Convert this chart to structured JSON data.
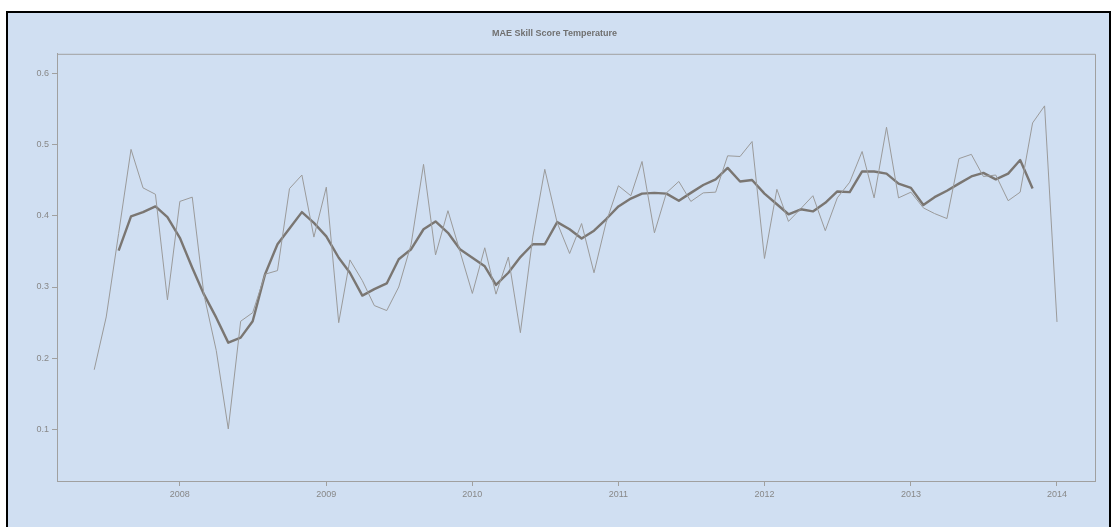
{
  "chart_data": {
    "type": "line",
    "title": "MAE Skill Score Temperature",
    "xlim": [
      "2007-02-28",
      "2014-04-06"
    ],
    "xticks": [
      "2008",
      "2009",
      "2010",
      "2011",
      "2012",
      "2013",
      "2014"
    ],
    "ylim": [
      0.028,
      0.627
    ],
    "yticks": [
      0.1,
      0.2,
      0.3,
      0.4,
      0.5,
      0.6
    ],
    "series": [
      {
        "color": "#9a9a9a",
        "x": [
          "2007-06",
          "2007-07",
          "2007-08",
          "2007-09",
          "2007-10",
          "2007-11",
          "2007-12",
          "2008-01",
          "2008-02",
          "2008-03",
          "2008-04",
          "2008-05",
          "2008-06",
          "2008-07",
          "2008-08",
          "2008-09",
          "2008-10",
          "2008-11",
          "2008-12",
          "2009-01",
          "2009-02",
          "2009-03",
          "2009-04",
          "2009-05",
          "2009-06",
          "2009-07",
          "2009-08",
          "2009-09",
          "2009-10",
          "2009-11",
          "2009-12",
          "2010-01",
          "2010-02",
          "2010-03",
          "2010-04",
          "2010-05",
          "2010-06",
          "2010-07",
          "2010-08",
          "2010-09",
          "2010-10",
          "2010-11",
          "2010-12",
          "2011-01",
          "2011-02",
          "2011-03",
          "2011-04",
          "2011-05",
          "2011-06",
          "2011-07",
          "2011-08",
          "2011-09",
          "2011-10",
          "2011-11",
          "2011-12",
          "2012-01",
          "2012-02",
          "2012-03",
          "2012-04",
          "2012-05",
          "2012-06",
          "2012-07",
          "2012-08",
          "2012-09",
          "2012-10",
          "2012-11",
          "2012-12",
          "2013-01",
          "2013-02",
          "2013-03",
          "2013-04",
          "2013-05",
          "2013-06",
          "2013-07",
          "2013-08",
          "2013-09",
          "2013-10",
          "2013-11",
          "2013-12",
          "2014-01"
        ],
        "values": [
          0.184,
          0.258,
          0.375,
          0.493,
          0.439,
          0.43,
          0.282,
          0.42,
          0.426,
          0.29,
          0.211,
          0.101,
          0.252,
          0.264,
          0.318,
          0.323,
          0.438,
          0.457,
          0.37,
          0.44,
          0.25,
          0.338,
          0.309,
          0.274,
          0.267,
          0.3,
          0.36,
          0.472,
          0.345,
          0.407,
          0.35,
          0.291,
          0.355,
          0.29,
          0.342,
          0.236,
          0.37,
          0.465,
          0.39,
          0.347,
          0.389,
          0.32,
          0.39,
          0.442,
          0.428,
          0.476,
          0.376,
          0.432,
          0.448,
          0.42,
          0.432,
          0.433,
          0.484,
          0.483,
          0.504,
          0.34,
          0.437,
          0.392,
          0.41,
          0.428,
          0.379,
          0.425,
          0.447,
          0.49,
          0.425,
          0.524,
          0.425,
          0.433,
          0.411,
          0.403,
          0.396,
          0.48,
          0.486,
          0.455,
          0.457,
          0.421,
          0.433,
          0.53,
          0.554,
          0.251
        ]
      },
      {
        "color": "#7a7672",
        "x": [
          "2007-08",
          "2007-09",
          "2007-10",
          "2007-11",
          "2007-12",
          "2008-01",
          "2008-02",
          "2008-03",
          "2008-04",
          "2008-05",
          "2008-06",
          "2008-07",
          "2008-08",
          "2008-09",
          "2008-10",
          "2008-11",
          "2008-12",
          "2009-01",
          "2009-02",
          "2009-03",
          "2009-04",
          "2009-05",
          "2009-06",
          "2009-07",
          "2009-08",
          "2009-09",
          "2009-10",
          "2009-11",
          "2009-12",
          "2010-01",
          "2010-02",
          "2010-03",
          "2010-04",
          "2010-05",
          "2010-06",
          "2010-07",
          "2010-08",
          "2010-09",
          "2010-10",
          "2010-11",
          "2010-12",
          "2011-01",
          "2011-02",
          "2011-03",
          "2011-04",
          "2011-05",
          "2011-06",
          "2011-07",
          "2011-08",
          "2011-09",
          "2011-10",
          "2011-11",
          "2011-12",
          "2012-01",
          "2012-02",
          "2012-03",
          "2012-04",
          "2012-05",
          "2012-06",
          "2012-07",
          "2012-08",
          "2012-09",
          "2012-10",
          "2012-11",
          "2012-12",
          "2013-01",
          "2013-02",
          "2013-03",
          "2013-04",
          "2013-05",
          "2013-06",
          "2013-07",
          "2013-08",
          "2013-09",
          "2013-10",
          "2013-11"
        ],
        "values": [
          0.351,
          0.399,
          0.405,
          0.413,
          0.398,
          0.369,
          0.327,
          0.29,
          0.257,
          0.222,
          0.229,
          0.252,
          0.318,
          0.36,
          0.382,
          0.405,
          0.39,
          0.371,
          0.341,
          0.32,
          0.288,
          0.297,
          0.305,
          0.339,
          0.353,
          0.381,
          0.392,
          0.376,
          0.353,
          0.341,
          0.329,
          0.303,
          0.32,
          0.342,
          0.36,
          0.36,
          0.391,
          0.381,
          0.368,
          0.379,
          0.395,
          0.413,
          0.424,
          0.431,
          0.432,
          0.431,
          0.421,
          0.432,
          0.443,
          0.451,
          0.467,
          0.448,
          0.45,
          0.431,
          0.416,
          0.402,
          0.409,
          0.406,
          0.418,
          0.434,
          0.433,
          0.462,
          0.462,
          0.459,
          0.445,
          0.439,
          0.415,
          0.426,
          0.435,
          0.445,
          0.455,
          0.46,
          0.451,
          0.459,
          0.478,
          0.438
        ]
      }
    ]
  }
}
